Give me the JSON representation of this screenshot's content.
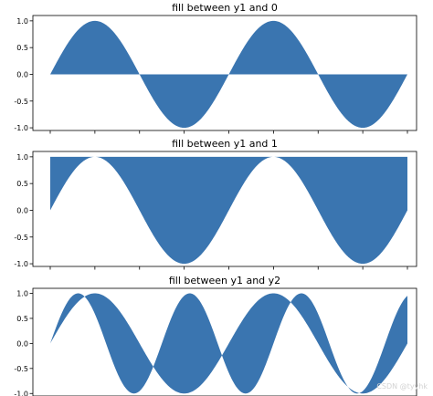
{
  "watermark": "CSDN @tyyhk",
  "chart_data": [
    {
      "type": "area",
      "title": "fill between y1 and 0",
      "x_range": [
        0,
        4
      ],
      "ylim": [
        -1.05,
        1.1
      ],
      "yticks": [
        -1.0,
        -0.5,
        0.0,
        0.5,
        1.0
      ],
      "ytick_labels": [
        "-1.0",
        "-0.5",
        "0.0",
        "0.5",
        "1.0"
      ],
      "xtick_count": 9,
      "series": [
        {
          "y1": "sin(pi*x)",
          "y2": "0",
          "color": "#3a75b0"
        }
      ],
      "grid": false
    },
    {
      "type": "area",
      "title": "fill between y1 and 1",
      "x_range": [
        0,
        4
      ],
      "ylim": [
        -1.05,
        1.1
      ],
      "yticks": [
        -1.0,
        -0.5,
        0.0,
        0.5,
        1.0
      ],
      "ytick_labels": [
        "-1.0",
        "-0.5",
        "0.0",
        "0.5",
        "1.0"
      ],
      "xtick_count": 9,
      "series": [
        {
          "y1": "sin(pi*x)",
          "y2": "1",
          "color": "#3a75b0"
        }
      ],
      "grid": false
    },
    {
      "type": "area",
      "title": "fill between y1 and y2",
      "x_range": [
        0,
        4
      ],
      "ylim": [
        -1.05,
        1.1
      ],
      "yticks": [
        -1.0,
        -0.5,
        0.0,
        0.5,
        1.0
      ],
      "ytick_labels": [
        "-1.0",
        "-0.5",
        "0.0",
        "0.5",
        "1.0"
      ],
      "xtick_count": 9,
      "series": [
        {
          "y1": "sin(pi*x)",
          "y2": "sin(1.6*pi*x)",
          "color": "#3a75b0"
        }
      ],
      "grid": false
    }
  ]
}
